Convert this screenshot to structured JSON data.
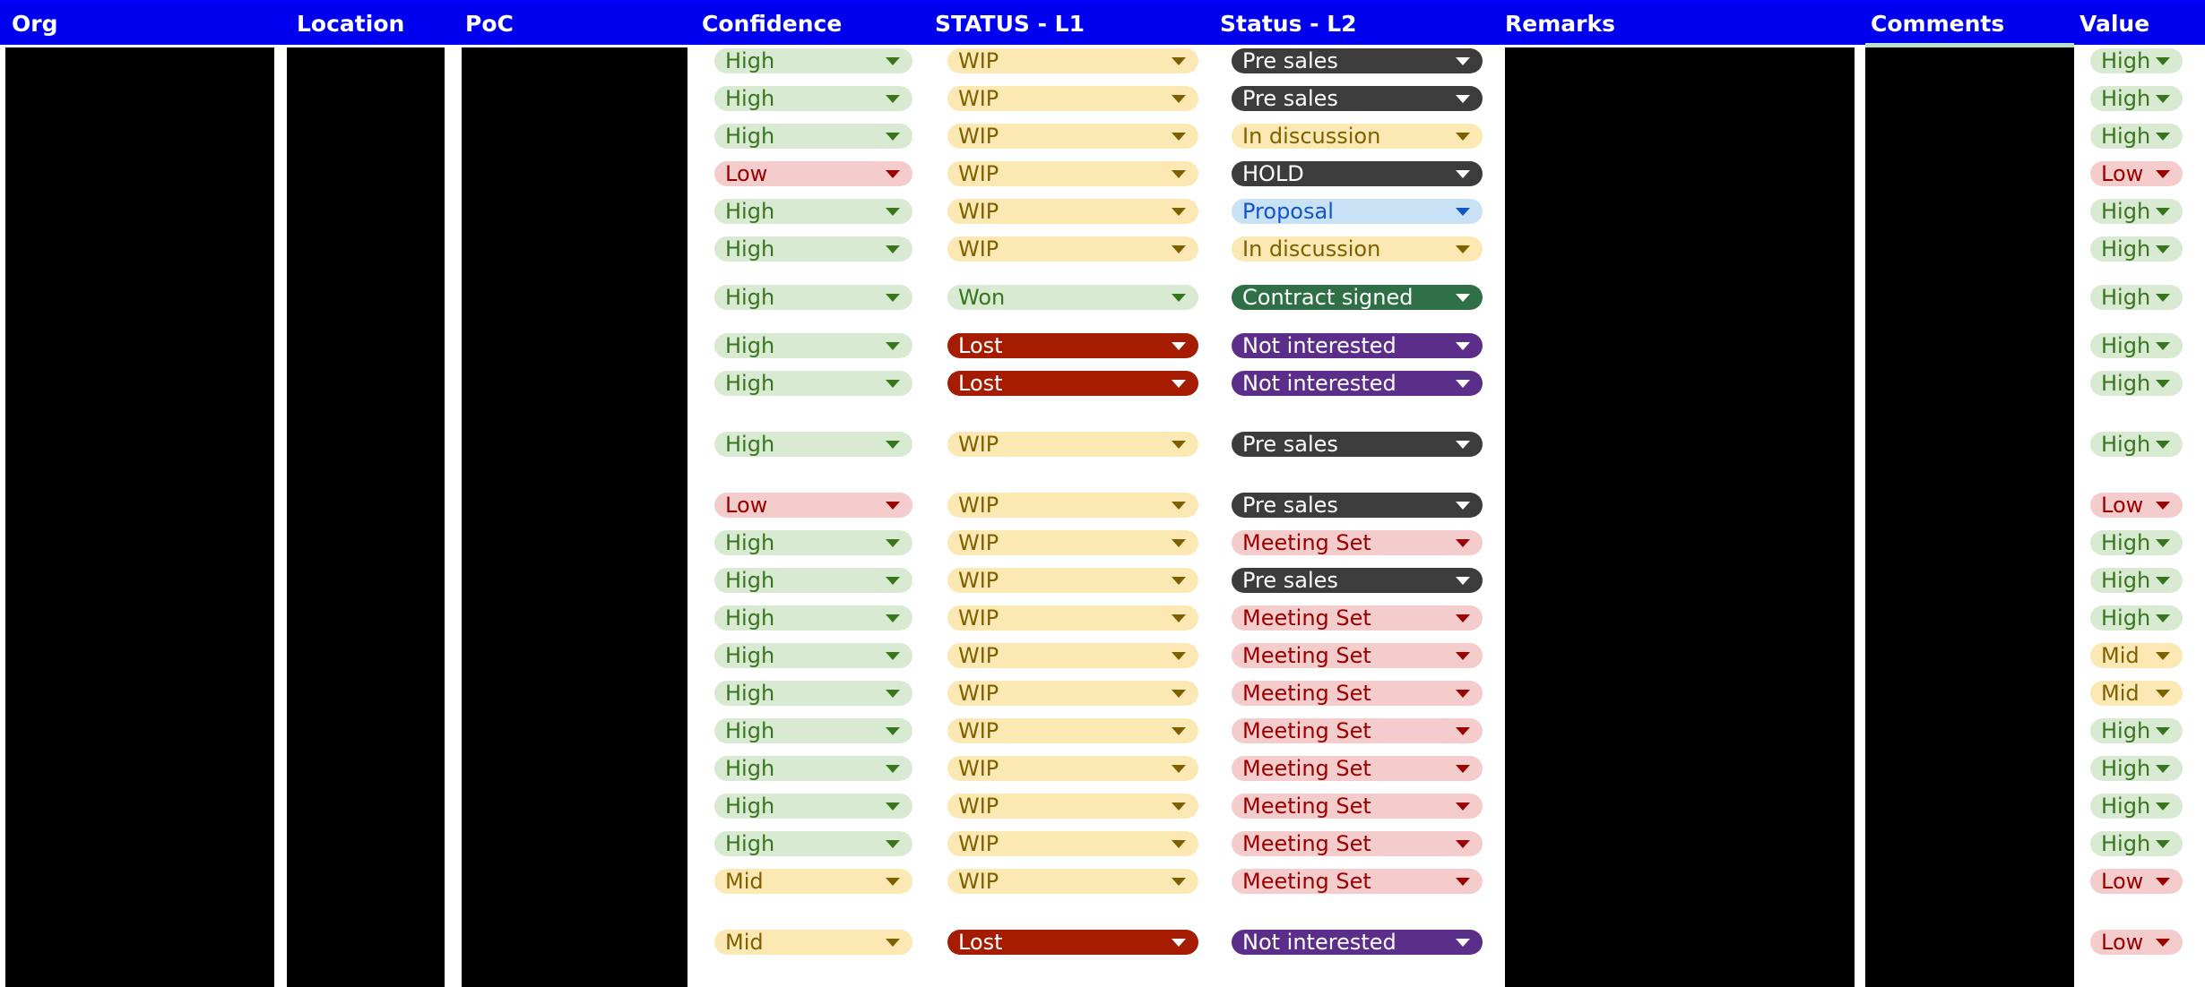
{
  "headers": {
    "org": "Org",
    "location": "Location",
    "poc": "PoC",
    "confidence": "Confidence",
    "status_l1": "STATUS - L1",
    "status_l2": "Status - L2",
    "remarks": "Remarks",
    "comments": "Comments",
    "value": "Value"
  },
  "rows": [
    {
      "confidence": "High",
      "status_l1": "WIP",
      "status_l2": "Pre sales",
      "value": "High"
    },
    {
      "confidence": "High",
      "status_l1": "WIP",
      "status_l2": "Pre sales",
      "value": "High"
    },
    {
      "confidence": "High",
      "status_l1": "WIP",
      "status_l2": "In discussion",
      "value": "High"
    },
    {
      "confidence": "Low",
      "status_l1": "WIP",
      "status_l2": "HOLD",
      "value": "Low"
    },
    {
      "confidence": "High",
      "status_l1": "WIP",
      "status_l2": "Proposal",
      "value": "High"
    },
    {
      "confidence": "High",
      "status_l1": "WIP",
      "status_l2": "In discussion",
      "value": "High"
    },
    {
      "confidence": "High",
      "status_l1": "Won",
      "status_l2": "Contract signed",
      "value": "High"
    },
    {
      "confidence": "High",
      "status_l1": "Lost",
      "status_l2": "Not interested",
      "value": "High"
    },
    {
      "confidence": "High",
      "status_l1": "Lost",
      "status_l2": "Not interested",
      "value": "High"
    },
    {
      "confidence": "High",
      "status_l1": "WIP",
      "status_l2": "Pre sales",
      "value": "High"
    },
    {
      "confidence": "Low",
      "status_l1": "WIP",
      "status_l2": "Pre sales",
      "value": "Low"
    },
    {
      "confidence": "High",
      "status_l1": "WIP",
      "status_l2": "Meeting Set",
      "value": "High"
    },
    {
      "confidence": "High",
      "status_l1": "WIP",
      "status_l2": "Pre sales",
      "value": "High"
    },
    {
      "confidence": "High",
      "status_l1": "WIP",
      "status_l2": "Meeting Set",
      "value": "High"
    },
    {
      "confidence": "High",
      "status_l1": "WIP",
      "status_l2": "Meeting Set",
      "value": "Mid"
    },
    {
      "confidence": "High",
      "status_l1": "WIP",
      "status_l2": "Meeting Set",
      "value": "Mid"
    },
    {
      "confidence": "High",
      "status_l1": "WIP",
      "status_l2": "Meeting Set",
      "value": "High"
    },
    {
      "confidence": "High",
      "status_l1": "WIP",
      "status_l2": "Meeting Set",
      "value": "High"
    },
    {
      "confidence": "High",
      "status_l1": "WIP",
      "status_l2": "Meeting Set",
      "value": "High"
    },
    {
      "confidence": "High",
      "status_l1": "WIP",
      "status_l2": "Meeting Set",
      "value": "High"
    },
    {
      "confidence": "Mid",
      "status_l1": "WIP",
      "status_l2": "Meeting Set",
      "value": "Low"
    },
    {
      "confidence": "Mid",
      "status_l1": "Lost",
      "status_l2": "Not interested",
      "value": "Low"
    }
  ],
  "colors": {
    "header_bg": "#0000ee",
    "redacted": "#000000"
  }
}
